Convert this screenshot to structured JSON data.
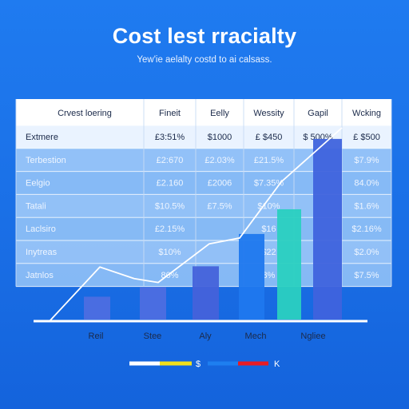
{
  "header": {
    "title": "Cost lest rracialty",
    "subtitle": "Yew'ie aelalty costd to ai calsass."
  },
  "table": {
    "columns": [
      "Crvest loering",
      "Fineit",
      "Eelly",
      "Wessity",
      "Gapil",
      "Wcking"
    ],
    "rows": [
      {
        "label": "Extmere",
        "cells": [
          "£3:51%",
          "$1000",
          "£ $450",
          "$ 500%",
          "£ $500"
        ]
      },
      {
        "label": "Terbestion",
        "cells": [
          "£2:670",
          "£2.03%",
          "£21.5%",
          "",
          "$7.9%"
        ]
      },
      {
        "label": "Eelgio",
        "cells": [
          "£2.160",
          "£2006",
          "$7.35%",
          "",
          "84.0%"
        ]
      },
      {
        "label": "Tatali",
        "cells": [
          "$10.5%",
          "£7.5%",
          "$10%",
          "",
          "$1.6%"
        ]
      },
      {
        "label": "Laclsiro",
        "cells": [
          "£2.15%",
          "",
          "$16",
          "",
          "$2.16%"
        ]
      },
      {
        "label": "Inytreas",
        "cells": [
          "$10%",
          "",
          "$22",
          "",
          "$2.0%"
        ]
      },
      {
        "label": "Jatnlos",
        "cells": [
          "80%",
          "",
          "8%",
          "",
          "$7.5%"
        ]
      }
    ]
  },
  "chart_data": {
    "type": "bar",
    "title": "Cost lest rracialty",
    "subtitle": "Yew'ie aelalty costd to ai calsass.",
    "categories": [
      "Reil",
      "Stee",
      "Aly",
      "Mech",
      "Ngliee"
    ],
    "bars": [
      {
        "category_index": 0,
        "value": 0.12,
        "color": "#4d6ee0"
      },
      {
        "category_index": 0,
        "value": 0.17,
        "color": "#4d6ee0"
      },
      {
        "category_index": 1,
        "value": 0.28,
        "color": "#4462da"
      },
      {
        "category_index": 2,
        "value": 0.45,
        "color": "#1f78ee"
      },
      {
        "category_index": 2,
        "value": 0.58,
        "color": "#2ad0c0"
      },
      {
        "category_index": 3,
        "value": 0.95,
        "color": "#3f63dd"
      }
    ],
    "line": [
      0.0,
      0.28,
      0.22,
      0.2,
      0.4,
      0.43,
      0.72,
      1.0
    ],
    "legend": [
      {
        "label": "",
        "color": "#ffffff"
      },
      {
        "label": "$",
        "color": "#f3e01b"
      },
      {
        "label": "",
        "color": "#1e7ff0"
      },
      {
        "label": "K",
        "color": "#e81c24"
      }
    ],
    "ylim": [
      0,
      1
    ],
    "legend_position": "bottom"
  },
  "colors": {
    "header_row_bg": "#ffffff",
    "first_row_bg": "#eaf3ff",
    "row_band_a": "#9cc8f8",
    "row_band_b": "#8fc0f6",
    "grid": "#ffffff",
    "text_dark": "#1b2a4a",
    "text_light": "#eef5ff"
  }
}
